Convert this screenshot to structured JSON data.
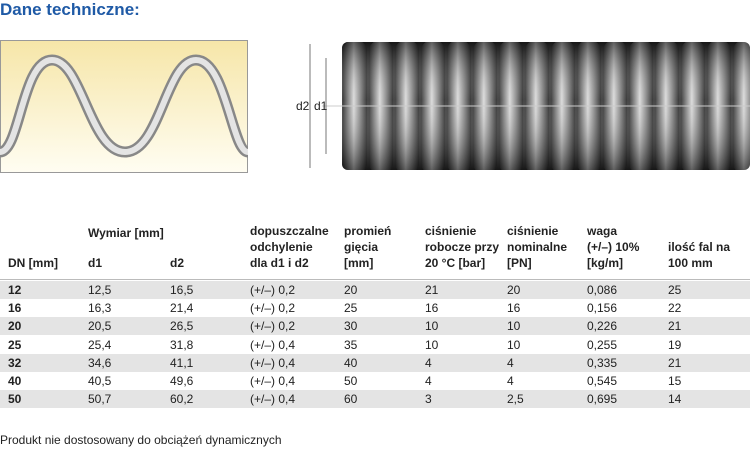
{
  "header": {
    "title": "Dane techniczne:"
  },
  "figure": {
    "label_d2": "d2",
    "label_d1": "d1"
  },
  "table": {
    "group_header": "Wymiar [mm]",
    "columns": [
      [
        "DN [mm]"
      ],
      [
        "d1"
      ],
      [
        "d2"
      ],
      [
        "dopuszczalne",
        "odchylenie",
        "dla d1 i d2"
      ],
      [
        "promień",
        "gięcia",
        "[mm]"
      ],
      [
        "ciśnienie",
        "robocze przy",
        "20 °C [bar]"
      ],
      [
        "ciśnienie",
        "nominalne",
        "[PN]"
      ],
      [
        "waga",
        "(+/–) 10%",
        "[kg/m]"
      ],
      [
        "ilość fal na",
        "100 mm"
      ]
    ],
    "rows": [
      [
        "12",
        "12,5",
        "16,5",
        "(+/–) 0,2",
        "20",
        "21",
        "20",
        "0,086",
        "25"
      ],
      [
        "16",
        "16,3",
        "21,4",
        "(+/–) 0,2",
        "25",
        "16",
        "16",
        "0,156",
        "22"
      ],
      [
        "20",
        "20,5",
        "26,5",
        "(+/–) 0,2",
        "30",
        "10",
        "10",
        "0,226",
        "21"
      ],
      [
        "25",
        "25,4",
        "31,8",
        "(+/–) 0,4",
        "35",
        "10",
        "10",
        "0,255",
        "19"
      ],
      [
        "32",
        "34,6",
        "41,1",
        "(+/–) 0,4",
        "40",
        "4",
        "4",
        "0,335",
        "21"
      ],
      [
        "40",
        "40,5",
        "49,6",
        "(+/–) 0,4",
        "50",
        "4",
        "4",
        "0,545",
        "15"
      ],
      [
        "50",
        "50,7",
        "60,2",
        "(+/–) 0,4",
        "60",
        "3",
        "2,5",
        "0,695",
        "14"
      ]
    ]
  },
  "footer": {
    "note": "Produkt nie dostosowany do obciążeń dynamicznych"
  }
}
